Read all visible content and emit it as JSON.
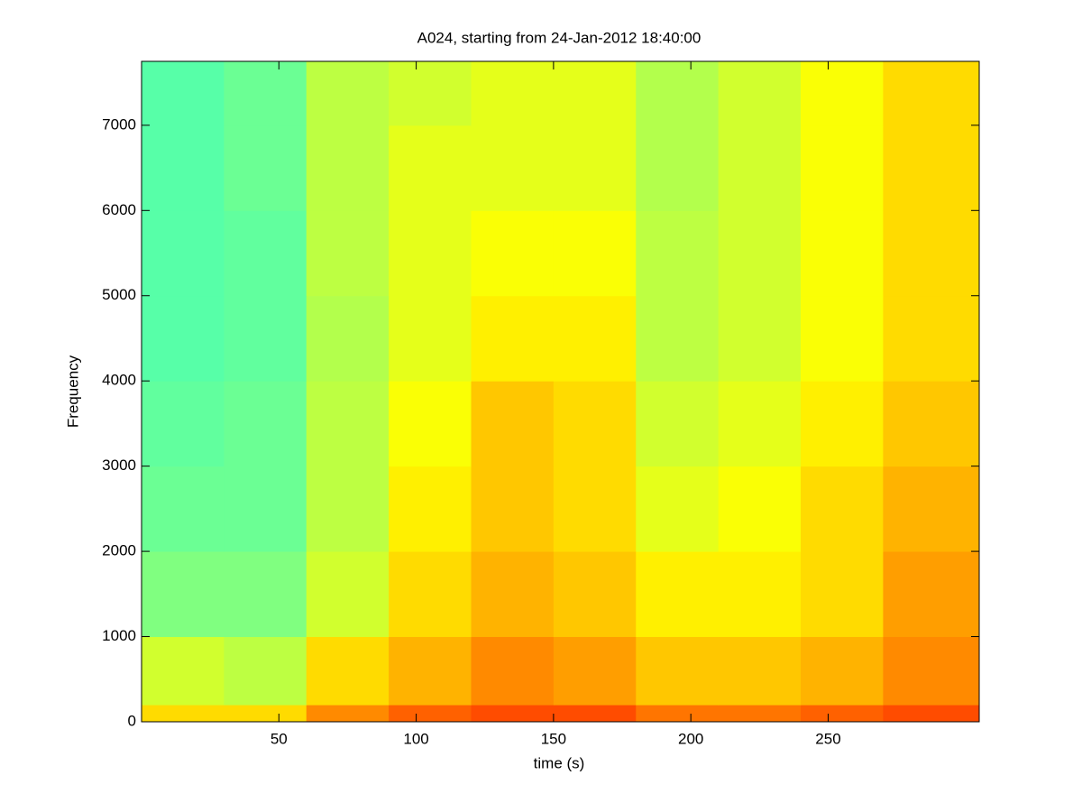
{
  "chart_data": {
    "type": "heatmap",
    "title": "A024, starting from 24-Jan-2012 18:40:00",
    "xlabel": "time (s)",
    "ylabel": "Frequency",
    "xlim": [
      0,
      305
    ],
    "ylim": [
      0,
      7750
    ],
    "xticks": [
      50,
      100,
      150,
      200,
      250
    ],
    "yticks": [
      0,
      1000,
      2000,
      3000,
      4000,
      5000,
      6000,
      7000
    ],
    "x_edges": [
      0,
      30,
      60,
      90,
      120,
      150,
      180,
      210,
      240,
      270,
      305
    ],
    "y_edges": [
      0,
      200,
      1000,
      2000,
      3000,
      4000,
      5000,
      6000,
      7000,
      7750
    ],
    "zlim": [
      0,
      1
    ],
    "z": [
      [
        0.66,
        0.66,
        0.74,
        0.78,
        0.8,
        0.8,
        0.76,
        0.76,
        0.78,
        0.8
      ],
      [
        0.58,
        0.56,
        0.66,
        0.7,
        0.74,
        0.72,
        0.68,
        0.68,
        0.7,
        0.74
      ],
      [
        0.5,
        0.5,
        0.58,
        0.66,
        0.7,
        0.68,
        0.64,
        0.64,
        0.66,
        0.72
      ],
      [
        0.48,
        0.48,
        0.56,
        0.64,
        0.68,
        0.66,
        0.6,
        0.62,
        0.66,
        0.7
      ],
      [
        0.47,
        0.48,
        0.56,
        0.62,
        0.68,
        0.66,
        0.58,
        0.6,
        0.64,
        0.68
      ],
      [
        0.46,
        0.47,
        0.55,
        0.6,
        0.64,
        0.64,
        0.56,
        0.58,
        0.62,
        0.66
      ],
      [
        0.46,
        0.47,
        0.56,
        0.6,
        0.62,
        0.62,
        0.56,
        0.58,
        0.62,
        0.66
      ],
      [
        0.46,
        0.48,
        0.56,
        0.6,
        0.6,
        0.6,
        0.55,
        0.58,
        0.62,
        0.66
      ],
      [
        0.46,
        0.48,
        0.56,
        0.58,
        0.6,
        0.6,
        0.55,
        0.58,
        0.62,
        0.66
      ]
    ]
  }
}
